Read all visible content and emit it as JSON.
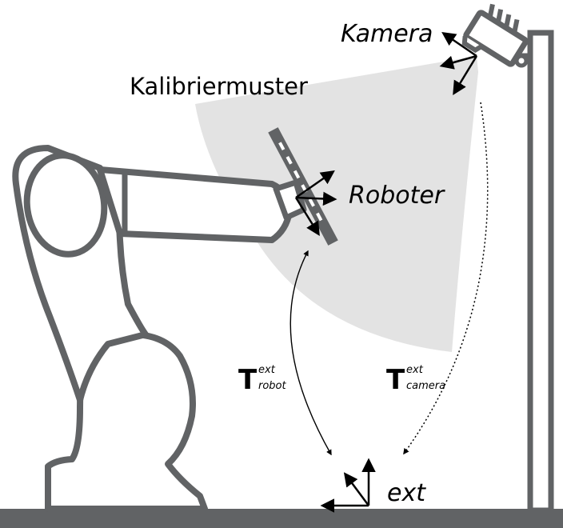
{
  "labels": {
    "camera": "Kamera",
    "pattern": "Kalibriermuster",
    "robot": "Roboter",
    "ext": "ext"
  },
  "transforms": {
    "robot": {
      "symbol": "T",
      "superscript": "ext",
      "subscript": "robot"
    },
    "camera": {
      "symbol": "T",
      "superscript": "ext",
      "subscript": "camera"
    }
  },
  "colors": {
    "structure": "#616365",
    "field_of_view": "#e3e3e3",
    "ink": "#000000"
  }
}
